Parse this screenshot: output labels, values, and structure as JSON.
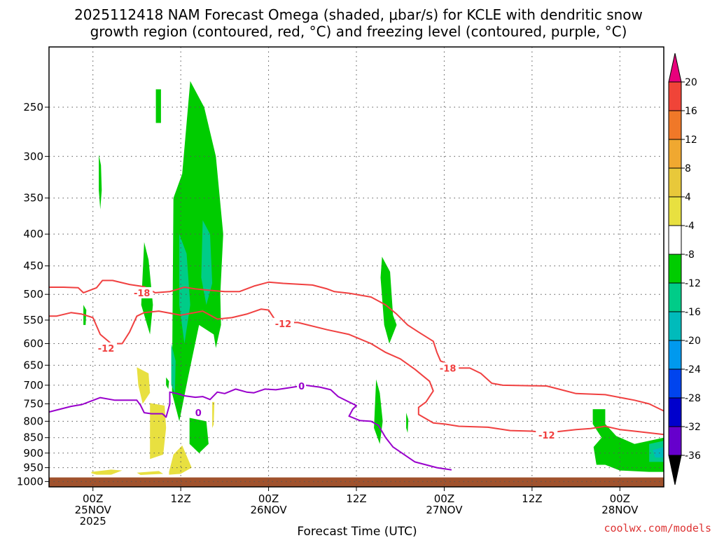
{
  "chart_data": {
    "type": "heatmap",
    "title_lines": [
      "2025112418 NAM Forecast Omega (shaded, μbar/s) for KCLE with dendritic snow",
      "growth region (contoured, red, °C) and freezing level (contoured, purple, °C)"
    ],
    "xlabel": "Forecast Time (UTC)",
    "credit": "coolwx.com/models",
    "xlim": [
      -6,
      78
    ],
    "ylim": [
      200,
      1020
    ],
    "y_scale": "log",
    "y_reversed": true,
    "grid": true,
    "y_ticks": [
      250,
      300,
      350,
      400,
      450,
      500,
      550,
      600,
      650,
      700,
      750,
      800,
      850,
      900,
      950,
      1000
    ],
    "x_ticks": [
      {
        "hour": 0,
        "lines": [
          "00Z",
          "25NOV",
          "2025"
        ]
      },
      {
        "hour": 12,
        "lines": [
          "12Z"
        ]
      },
      {
        "hour": 24,
        "lines": [
          "00Z",
          "26NOV"
        ]
      },
      {
        "hour": 36,
        "lines": [
          "12Z"
        ]
      },
      {
        "hour": 48,
        "lines": [
          "00Z",
          "27NOV"
        ]
      },
      {
        "hour": 60,
        "lines": [
          "12Z"
        ]
      },
      {
        "hour": 72,
        "lines": [
          "00Z",
          "28NOV"
        ]
      }
    ],
    "colorbar": {
      "labels": [
        "20",
        "16",
        "12",
        "8",
        "4",
        "-4",
        "-8",
        "-12",
        "-16",
        "-20",
        "-24",
        "-28",
        "-32",
        "-36"
      ],
      "colors": [
        "#e8007c",
        "#f04438",
        "#f07828",
        "#f0a830",
        "#e8c83a",
        "#e8e040",
        "#ffffff",
        "#00cc00",
        "#00cc88",
        "#00bbbb",
        "#0099ee",
        "#0044ee",
        "#0000cc",
        "#6600cc",
        "#9900cc",
        "#aaaaaa",
        "#000000"
      ]
    },
    "ground_color": "#a0522d",
    "ground_top_hpa": 985,
    "series": [
      {
        "name": "-18",
        "color": "#f04040",
        "label_at": [
          [
            6.7,
            497
          ],
          [
            48.5,
            657
          ]
        ],
        "points": [
          [
            -6,
            487
          ],
          [
            -4,
            487
          ],
          [
            -2,
            488
          ],
          [
            -1.3,
            497
          ],
          [
            0.5,
            488
          ],
          [
            1.3,
            475
          ],
          [
            2.7,
            475
          ],
          [
            5,
            482
          ],
          [
            7,
            486
          ],
          [
            8.5,
            497
          ],
          [
            10.5,
            495
          ],
          [
            12.5,
            487
          ],
          [
            14,
            490
          ],
          [
            15.5,
            492
          ],
          [
            18,
            495
          ],
          [
            20,
            495
          ],
          [
            22,
            485
          ],
          [
            24,
            478
          ],
          [
            26,
            480
          ],
          [
            30,
            483
          ],
          [
            32,
            490
          ],
          [
            33,
            495
          ],
          [
            35,
            498
          ],
          [
            38,
            505
          ],
          [
            40,
            520
          ],
          [
            41.5,
            538
          ],
          [
            43,
            560
          ],
          [
            44.5,
            575
          ],
          [
            46.5,
            595
          ],
          [
            47,
            620
          ],
          [
            47.5,
            640
          ],
          [
            50,
            657
          ],
          [
            51.5,
            657
          ],
          [
            53,
            670
          ],
          [
            54.5,
            695
          ],
          [
            56,
            700
          ],
          [
            62,
            702
          ],
          [
            64,
            712
          ],
          [
            66,
            722
          ],
          [
            70,
            725
          ],
          [
            74,
            740
          ],
          [
            76,
            750
          ],
          [
            78,
            770
          ]
        ]
      },
      {
        "name": "-12",
        "color": "#f04040",
        "label_at": [
          [
            1.8,
            610
          ],
          [
            26,
            557
          ],
          [
            62,
            842
          ]
        ],
        "points": [
          [
            -6,
            542
          ],
          [
            -5,
            542
          ],
          [
            -3,
            535
          ],
          [
            -1.5,
            538
          ],
          [
            0,
            545
          ],
          [
            1,
            580
          ],
          [
            2.5,
            600
          ],
          [
            4,
            600
          ],
          [
            5,
            575
          ],
          [
            6,
            542
          ],
          [
            7,
            535
          ],
          [
            9,
            532
          ],
          [
            12,
            540
          ],
          [
            15,
            532
          ],
          [
            17,
            548
          ],
          [
            19,
            545
          ],
          [
            21,
            538
          ],
          [
            23,
            528
          ],
          [
            24,
            530
          ],
          [
            25,
            552
          ],
          [
            26,
            555
          ],
          [
            28,
            555
          ],
          [
            32,
            570
          ],
          [
            35,
            580
          ],
          [
            38,
            600
          ],
          [
            40,
            620
          ],
          [
            42,
            635
          ],
          [
            44,
            660
          ],
          [
            46,
            690
          ],
          [
            46.5,
            715
          ],
          [
            45.5,
            745
          ],
          [
            44.5,
            760
          ],
          [
            44.5,
            780
          ],
          [
            46.5,
            805
          ],
          [
            48,
            808
          ],
          [
            50,
            815
          ],
          [
            54,
            818
          ],
          [
            57,
            828
          ],
          [
            60,
            830
          ],
          [
            62,
            835
          ],
          [
            66,
            825
          ],
          [
            68,
            822
          ],
          [
            70,
            815
          ],
          [
            72,
            825
          ],
          [
            74,
            830
          ],
          [
            78,
            840
          ]
        ]
      },
      {
        "name": "0",
        "color": "#9900cc",
        "label_at": [
          [
            14.4,
            775
          ],
          [
            28.5,
            702
          ]
        ],
        "points": [
          [
            -6,
            773
          ],
          [
            -3,
            757
          ],
          [
            -1.5,
            752
          ],
          [
            1,
            733
          ],
          [
            3,
            740
          ],
          [
            6,
            740
          ],
          [
            6.5,
            754
          ],
          [
            7,
            775
          ],
          [
            8,
            778
          ],
          [
            9.5,
            778
          ],
          [
            10,
            788
          ],
          [
            10.5,
            750
          ],
          [
            10.5,
            718
          ],
          [
            11.5,
            722
          ],
          [
            12.5,
            728
          ],
          [
            14,
            732
          ],
          [
            15,
            730
          ],
          [
            16,
            738
          ],
          [
            17,
            718
          ],
          [
            18,
            722
          ],
          [
            19.5,
            710
          ],
          [
            21,
            718
          ],
          [
            22,
            720
          ],
          [
            23.5,
            710
          ],
          [
            25,
            712
          ],
          [
            27,
            706
          ],
          [
            29,
            700
          ],
          [
            31,
            705
          ],
          [
            32.5,
            712
          ],
          [
            33.5,
            730
          ],
          [
            35,
            745
          ],
          [
            36,
            755
          ],
          [
            35.5,
            765
          ],
          [
            35,
            785
          ],
          [
            36.5,
            798
          ],
          [
            38,
            800
          ],
          [
            39,
            812
          ],
          [
            40,
            850
          ],
          [
            41,
            880
          ],
          [
            44,
            930
          ],
          [
            47,
            950
          ],
          [
            49,
            958
          ]
        ]
      }
    ],
    "shaded_regions": [
      {
        "value": -4,
        "color": "#00cc00",
        "hours": [
          13.3,
          15.2,
          16.8,
          17.8,
          17.4,
          17.5,
          16.8,
          16.5,
          14.5,
          13.0,
          11.8,
          10.8,
          11.0,
          12.2,
          13.3
        ],
        "hpa": [
          227,
          250,
          300,
          400,
          500,
          560,
          610,
          580,
          560,
          680,
          800,
          720,
          350,
          320,
          227
        ]
      },
      {
        "value": -4,
        "color": "#00cc00",
        "hours": [
          8.6,
          9.3,
          9.3,
          8.6
        ],
        "hpa": [
          234,
          234,
          265,
          265
        ]
      },
      {
        "value": -4,
        "color": "#00cc00",
        "hours": [
          0.8,
          1.1,
          1.2,
          1.0,
          0.8
        ],
        "hpa": [
          298,
          310,
          340,
          365,
          340
        ]
      },
      {
        "value": -4,
        "color": "#00cc00",
        "hours": [
          7.0,
          7.6,
          8.2,
          7.8,
          6.6
        ],
        "hpa": [
          412,
          440,
          520,
          580,
          520
        ]
      },
      {
        "value": -4,
        "color": "#00cc00",
        "hours": [
          -1.3,
          -0.9,
          -1.0,
          -1.3
        ],
        "hpa": [
          520,
          530,
          560,
          560
        ]
      },
      {
        "value": -4,
        "color": "#00cc00",
        "hours": [
          39.5,
          40.6,
          41.0,
          41.5,
          40.5,
          39.8,
          39.3
        ],
        "hpa": [
          435,
          460,
          540,
          560,
          600,
          560,
          470
        ]
      },
      {
        "value": -4,
        "color": "#00cc00",
        "hours": [
          38.7,
          39.2,
          39.6,
          39.2,
          38.4
        ],
        "hpa": [
          685,
          720,
          800,
          870,
          820
        ]
      },
      {
        "value": -4,
        "color": "#00cc00",
        "hours": [
          42.8,
          43.1,
          43.0,
          42.8
        ],
        "hpa": [
          775,
          795,
          835,
          820
        ]
      },
      {
        "value": -4,
        "color": "#00cc00",
        "hours": [
          10.0,
          10.4,
          10.3,
          10.0
        ],
        "hpa": [
          680,
          690,
          710,
          700
        ]
      },
      {
        "value": -4,
        "color": "#00cc00",
        "hours": [
          13.2,
          15.5,
          15.8,
          14.5,
          13.2
        ],
        "hpa": [
          790,
          800,
          870,
          900,
          870
        ]
      },
      {
        "value": -4,
        "color": "#00cc00",
        "hours": [
          68.3,
          70.0,
          70.0,
          71.5,
          74.0,
          76.0,
          78.0,
          78.0,
          76.0,
          72.0,
          70.0,
          68.8,
          68.4,
          69.5,
          68.3
        ],
        "hpa": [
          765,
          765,
          808,
          845,
          870,
          860,
          850,
          965,
          965,
          960,
          940,
          940,
          880,
          850,
          808
        ]
      },
      {
        "value": -8,
        "color": "#00cc88",
        "hours": [
          11.8,
          12.8,
          13.3,
          12.5,
          11.8
        ],
        "hpa": [
          400,
          430,
          520,
          600,
          520
        ]
      },
      {
        "value": -8,
        "color": "#00cc88",
        "hours": [
          15.0,
          16.0,
          16.3,
          15.5,
          14.8
        ],
        "hpa": [
          380,
          400,
          480,
          520,
          470
        ]
      },
      {
        "value": -8,
        "color": "#00cc88",
        "hours": [
          10.7,
          11.3,
          11.2,
          10.7
        ],
        "hpa": [
          600,
          640,
          720,
          700
        ]
      },
      {
        "value": -8,
        "color": "#00cc88",
        "hours": [
          76.0,
          78.0,
          78.0,
          76.0
        ],
        "hpa": [
          870,
          860,
          930,
          930
        ]
      },
      {
        "value": -12,
        "color": "#00bbbb",
        "hours": [
          76.5,
          78.0,
          78.0,
          76.8
        ],
        "hpa": [
          890,
          880,
          915,
          915
        ]
      },
      {
        "value": 4,
        "color": "#e8e040",
        "hours": [
          6.0,
          7.6,
          7.8,
          6.8,
          6.2
        ],
        "hpa": [
          655,
          670,
          720,
          750,
          700
        ]
      },
      {
        "value": 4,
        "color": "#e8e040",
        "hours": [
          7.8,
          9.8,
          10.0,
          9.6,
          7.8
        ],
        "hpa": [
          748,
          755,
          820,
          905,
          920
        ]
      },
      {
        "value": 4,
        "color": "#e8e040",
        "hours": [
          16.3,
          16.6,
          16.5,
          16.3
        ],
        "hpa": [
          745,
          745,
          810,
          820
        ]
      },
      {
        "value": 4,
        "color": "#e8e040",
        "hours": [
          10.4,
          11.0,
          12.2,
          13.5,
          12.0,
          10.4
        ],
        "hpa": [
          965,
          905,
          875,
          950,
          972,
          975
        ]
      },
      {
        "value": 4,
        "color": "#e8e040",
        "hours": [
          -0.2,
          2.5,
          4.0,
          2.5,
          0.5,
          -0.2
        ],
        "hpa": [
          965,
          957,
          960,
          975,
          975,
          970
        ]
      },
      {
        "value": 4,
        "color": "#e8e040",
        "hours": [
          6.0,
          9.0,
          9.6,
          6.5
        ],
        "hpa": [
          968,
          962,
          972,
          976
        ]
      }
    ]
  }
}
